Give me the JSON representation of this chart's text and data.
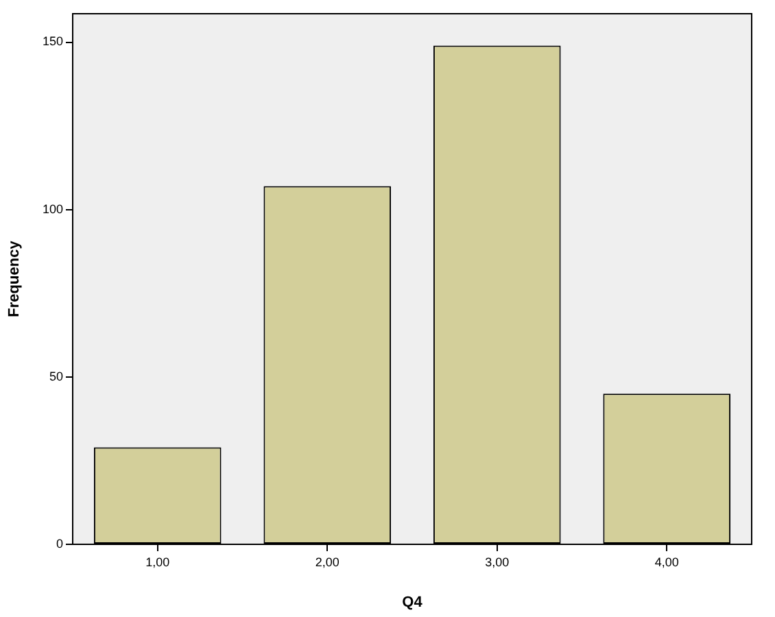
{
  "chart_data": {
    "type": "bar",
    "xlabel": "Q4",
    "ylabel": "Frequency",
    "categories": [
      "1,00",
      "2,00",
      "3,00",
      "4,00"
    ],
    "values": [
      29,
      107,
      149,
      45
    ],
    "color": "#d3cf9a",
    "ylim": [
      0,
      158.5
    ],
    "yticks": [
      0,
      50,
      100,
      150
    ],
    "grid": false,
    "legend": false
  }
}
